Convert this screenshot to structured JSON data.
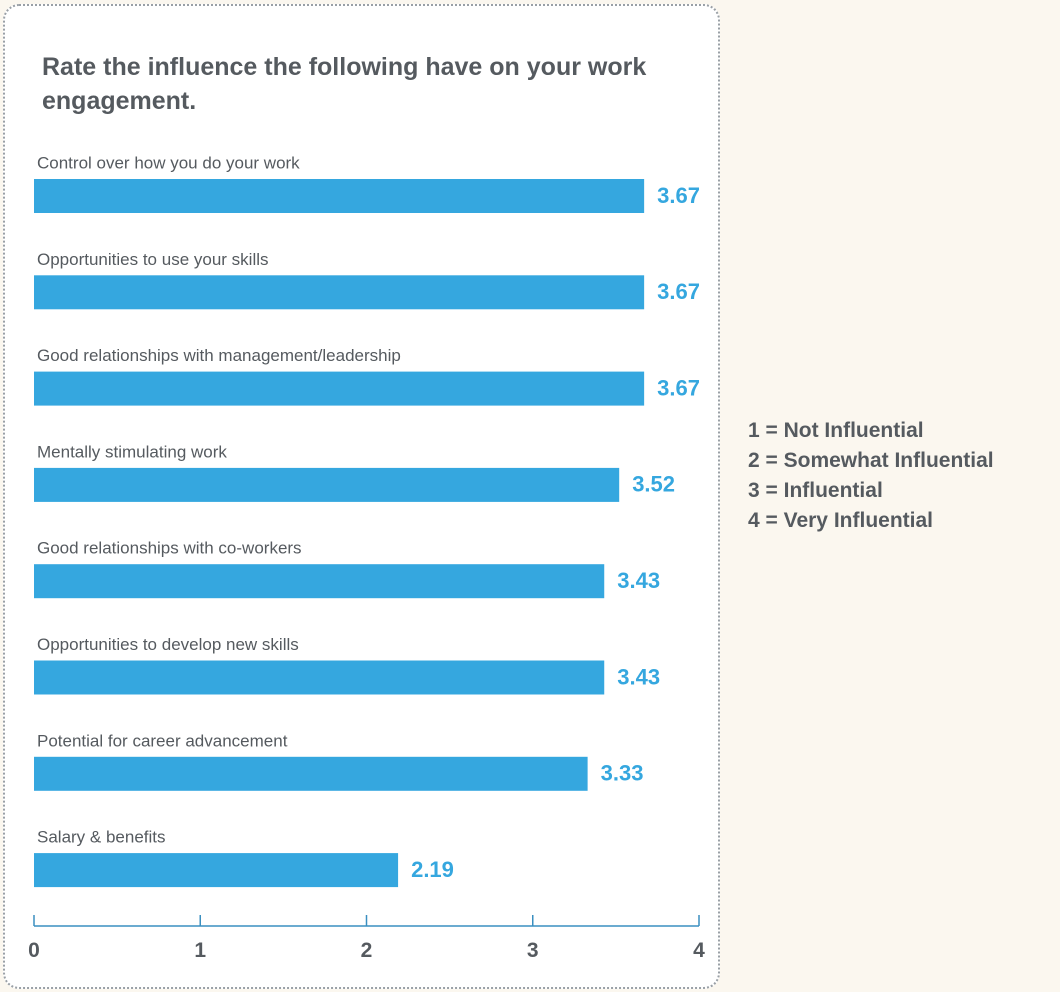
{
  "chart_data": {
    "type": "bar",
    "orientation": "horizontal",
    "title": "Rate the influence the following have on your work engagement.",
    "categories": [
      "Control over how you do your work",
      "Opportunities to use your skills",
      "Good relationships with management/leadership",
      "Mentally stimulating work",
      "Good relationships with co-workers",
      "Opportunities to develop new skills",
      "Potential for career advancement",
      "Salary & benefits"
    ],
    "values": [
      3.67,
      3.67,
      3.67,
      3.52,
      3.43,
      3.43,
      3.33,
      2.19
    ],
    "value_labels": [
      "3.67",
      "3.67",
      "3.67",
      "3.52",
      "3.43",
      "3.43",
      "3.33",
      "2.19"
    ],
    "xlim": [
      0,
      4
    ],
    "xticks": [
      "0",
      "1",
      "2",
      "3",
      "4"
    ],
    "grid": false,
    "bar_color": "#35a7df",
    "value_label_color": "#35a7df"
  },
  "legend": {
    "items": [
      "1 = Not Influential",
      "2 = Somewhat Influential",
      "3 = Influential",
      "4 = Very Influential"
    ]
  }
}
